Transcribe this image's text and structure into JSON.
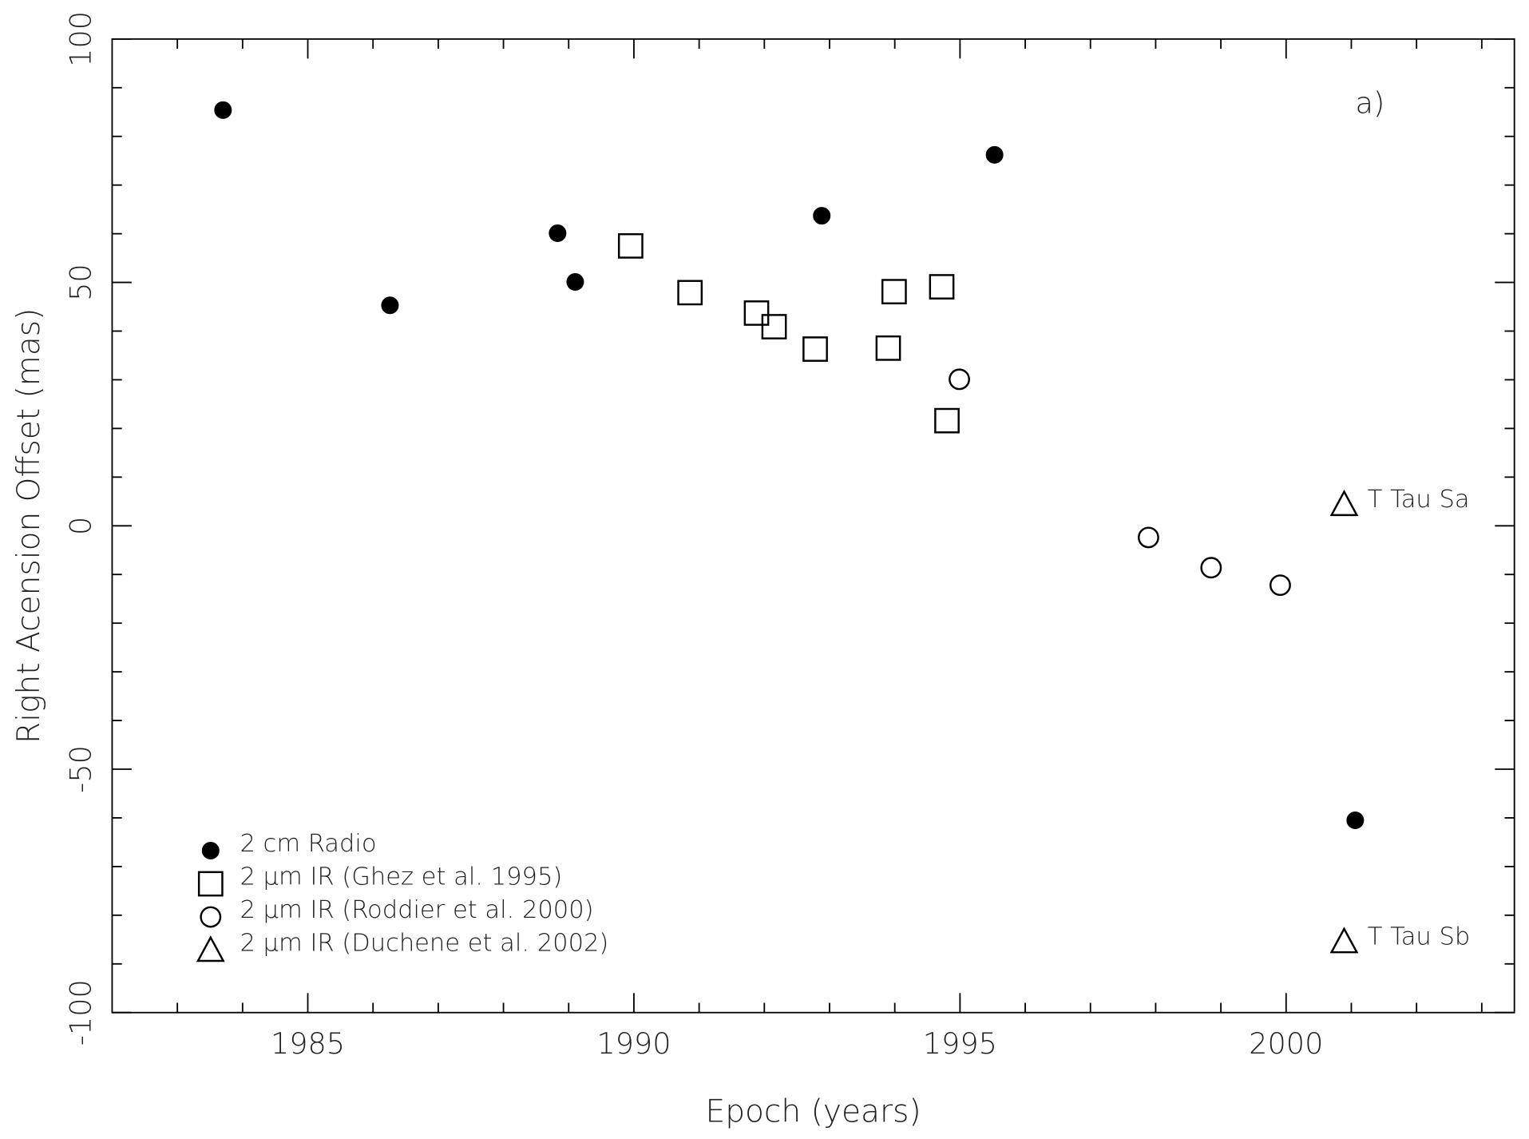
{
  "chart_data": {
    "type": "scatter",
    "panel_label": "a)",
    "x_label": "Epoch (years)",
    "y_label": "Right Acension Offset (mas)",
    "xlim": [
      1982.0,
      2003.5
    ],
    "ylim": [
      -100,
      100
    ],
    "xticks": [
      1985,
      1990,
      1995,
      2000
    ],
    "yticks": [
      -100,
      -50,
      0,
      50,
      100
    ],
    "xminorticks": [
      1983,
      1984,
      1986,
      1987,
      1988,
      1989,
      1991,
      1992,
      1993,
      1994,
      1996,
      1997,
      1998,
      1999,
      2001,
      2002,
      2003
    ],
    "yminorticks": [
      -90,
      -80,
      -70,
      -60,
      -40,
      -30,
      -20,
      -10,
      10,
      20,
      30,
      40,
      60,
      70,
      80,
      90
    ],
    "legend": "lower left",
    "series": [
      {
        "name": "2 cm Radio",
        "marker": "filled-circle",
        "color": "#000000",
        "x": [
          1983.7,
          1986.26,
          1988.83,
          1989.1,
          1992.88,
          1995.53,
          2001.06
        ],
        "values": [
          85.4,
          45.3,
          60.1,
          50.1,
          63.7,
          76.2,
          -60.5
        ]
      },
      {
        "name": "2 μm IR (Ghez et al. 1995)",
        "marker": "square",
        "color": "#000000",
        "x": [
          1989.95,
          1990.86,
          1991.88,
          1992.15,
          1992.78,
          1993.9,
          1993.99,
          1994.72,
          1994.8
        ],
        "values": [
          57.5,
          47.9,
          43.7,
          40.9,
          36.3,
          36.5,
          48.1,
          49.1,
          21.6
        ]
      },
      {
        "name": "2 μm IR (Roddier et al. 2000)",
        "marker": "circle",
        "color": "#000000",
        "x": [
          1994.99,
          1997.89,
          1998.85,
          1999.91
        ],
        "values": [
          30.1,
          -2.4,
          -8.6,
          -12.2
        ]
      },
      {
        "name": "2 μm IR (Duchene et al. 2002)",
        "marker": "triangle",
        "color": "#000000",
        "x": [
          2000.89,
          2000.89
        ],
        "values": [
          4.4,
          -85.4
        ],
        "point_labels": [
          "T Tau Sa",
          "T Tau Sb"
        ]
      }
    ]
  }
}
